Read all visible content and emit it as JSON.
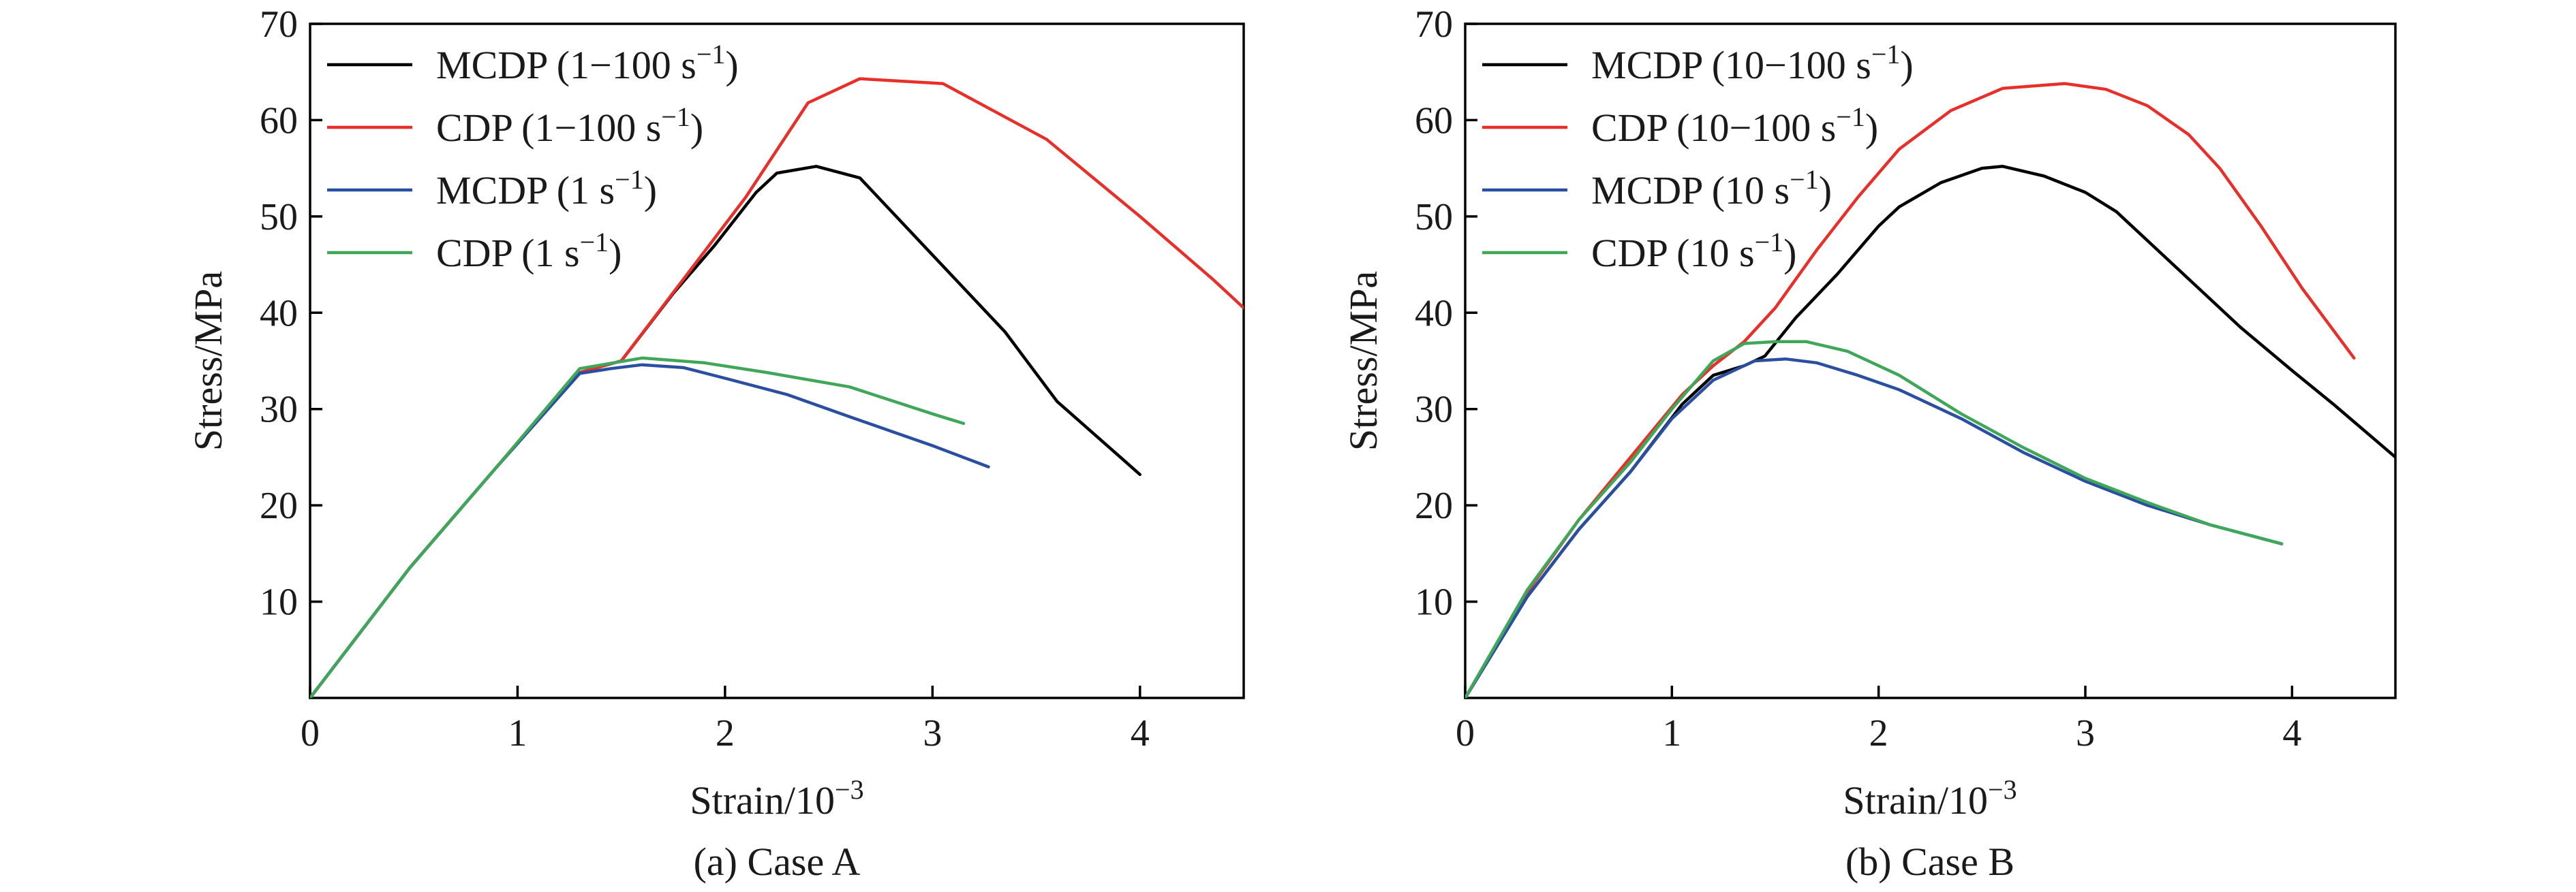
{
  "figure": {
    "captions": [
      "(a) Case A",
      "(b) Case B"
    ]
  },
  "chart_data": [
    {
      "type": "line",
      "caption": "(a) Case A",
      "xlabel": "Strain/10",
      "xlabel_sup": "−3",
      "ylabel": "Stress/MPa",
      "xlim": [
        0,
        4.5
      ],
      "ylim": [
        0,
        70
      ],
      "xticks": [
        0,
        1,
        2,
        3,
        4
      ],
      "yticks": [
        10,
        20,
        30,
        40,
        50,
        60,
        70
      ],
      "grid": false,
      "legend_position": "top-left",
      "series": [
        {
          "name": "MCDP (1−100 s",
          "name_sup": "−1",
          "name_tail": ")",
          "color": "#000000",
          "x": [
            0,
            0.48,
            0.9,
            1.3,
            1.5,
            1.75,
            1.95,
            2.15,
            2.25,
            2.44,
            2.65,
            3.0,
            3.35,
            3.6,
            4.0
          ],
          "y": [
            0,
            13.5,
            24,
            33.8,
            35,
            42,
            47,
            52.5,
            54.5,
            55.2,
            54,
            46,
            38,
            30.8,
            23.2
          ]
        },
        {
          "name": "CDP (1−100 s",
          "name_sup": "−1",
          "name_tail": ")",
          "color": "#e8302a",
          "x": [
            0,
            0.48,
            0.9,
            1.3,
            1.5,
            1.8,
            2.1,
            2.4,
            2.65,
            3.05,
            3.55,
            4.0,
            4.35,
            4.5
          ],
          "y": [
            0,
            13.5,
            24,
            33.8,
            35,
            43.5,
            52,
            61.8,
            64.3,
            63.8,
            58,
            50,
            43.5,
            40.5
          ]
        },
        {
          "name": "MCDP (1 s",
          "name_sup": "−1",
          "name_tail": ")",
          "color": "#2a4fa0",
          "x": [
            0,
            0.48,
            0.9,
            1.3,
            1.45,
            1.6,
            1.8,
            2.0,
            2.3,
            2.6,
            3.0,
            3.27
          ],
          "y": [
            0,
            13.5,
            24,
            33.7,
            34.2,
            34.6,
            34.3,
            33.2,
            31.5,
            29.2,
            26.2,
            24
          ]
        },
        {
          "name": "CDP (1 s",
          "name_sup": "−1",
          "name_tail": ")",
          "color": "#3fa65a",
          "x": [
            0,
            0.48,
            0.9,
            1.3,
            1.6,
            1.9,
            2.2,
            2.6,
            3.0,
            3.15
          ],
          "y": [
            0,
            13.5,
            24,
            34.2,
            35.3,
            34.8,
            33.8,
            32.3,
            29.5,
            28.5
          ]
        }
      ]
    },
    {
      "type": "line",
      "caption": "(b) Case B",
      "xlabel": "Strain/10",
      "xlabel_sup": "−3",
      "ylabel": "Stress/MPa",
      "xlim": [
        0,
        4.5
      ],
      "ylim": [
        0,
        70
      ],
      "xticks": [
        0,
        1,
        2,
        3,
        4
      ],
      "yticks": [
        10,
        20,
        30,
        40,
        50,
        60,
        70
      ],
      "grid": false,
      "legend_position": "top-left",
      "series": [
        {
          "name": "MCDP (10−100 s",
          "name_sup": "−1",
          "name_tail": ")",
          "color": "#000000",
          "x": [
            0,
            0.3,
            0.55,
            0.8,
            1.05,
            1.2,
            1.35,
            1.45,
            1.6,
            1.8,
            2.0,
            2.1,
            2.3,
            2.5,
            2.6,
            2.8,
            3.0,
            3.15,
            3.35,
            3.55,
            3.75,
            4.0,
            4.2,
            4.5
          ],
          "y": [
            0,
            10.5,
            17.5,
            23.5,
            30.5,
            33.5,
            34.5,
            35.5,
            39.5,
            44,
            49,
            51,
            53.5,
            55,
            55.2,
            54.2,
            52.5,
            50.5,
            46.5,
            42.5,
            38.5,
            34,
            30.5,
            25
          ]
        },
        {
          "name": "CDP (10−100 s",
          "name_sup": "−1",
          "name_tail": ")",
          "color": "#e8302a",
          "x": [
            0,
            0.3,
            0.55,
            0.8,
            1.05,
            1.2,
            1.35,
            1.5,
            1.7,
            1.9,
            2.1,
            2.35,
            2.6,
            2.9,
            3.1,
            3.3,
            3.5,
            3.65,
            3.85,
            4.05,
            4.3
          ],
          "y": [
            0,
            11,
            18.5,
            25,
            31.5,
            34.5,
            37,
            40.5,
            46.5,
            52,
            57,
            61,
            63.3,
            63.8,
            63.2,
            61.5,
            58.5,
            55,
            49,
            42.5,
            35.3
          ]
        },
        {
          "name": "MCDP (10 s",
          "name_sup": "−1",
          "name_tail": ")",
          "color": "#2a4fa0",
          "x": [
            0,
            0.3,
            0.55,
            0.8,
            1.0,
            1.2,
            1.4,
            1.55,
            1.7,
            1.9,
            2.1,
            2.4,
            2.7,
            3.0,
            3.3,
            3.6,
            3.95
          ],
          "y": [
            0,
            10.5,
            17.5,
            23.5,
            29,
            33,
            35,
            35.2,
            34.8,
            33.5,
            32,
            29,
            25.5,
            22.5,
            20,
            18,
            16
          ]
        },
        {
          "name": "CDP (10 s",
          "name_sup": "−1",
          "name_tail": ")",
          "color": "#3fa65a",
          "x": [
            0,
            0.3,
            0.55,
            0.8,
            1.0,
            1.2,
            1.35,
            1.5,
            1.65,
            1.85,
            2.1,
            2.4,
            2.7,
            3.0,
            3.3,
            3.6,
            3.95
          ],
          "y": [
            0,
            11.2,
            18.5,
            24.5,
            30,
            35,
            36.8,
            37,
            37,
            36,
            33.5,
            29.5,
            26,
            22.8,
            20.3,
            18,
            16
          ]
        }
      ]
    }
  ]
}
